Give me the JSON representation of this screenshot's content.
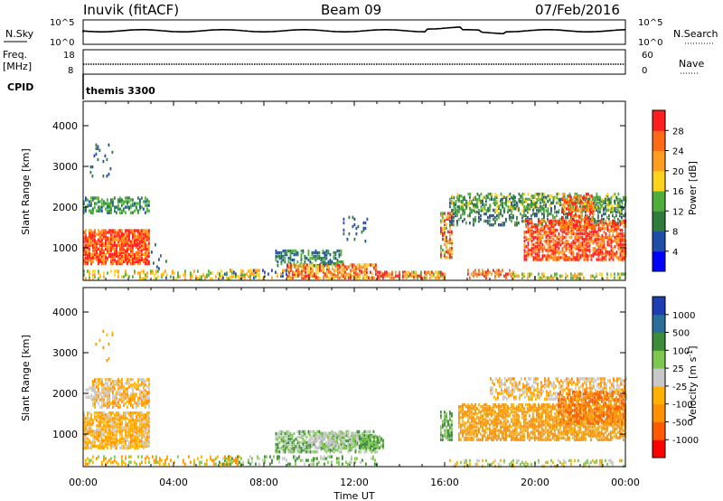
{
  "header": {
    "station": "Inuvik (fitACF)",
    "beam": "Beam 09",
    "date": "07/Feb/2016"
  },
  "params": {
    "nsky_label": "N.Sky",
    "nsky_top": "10^5",
    "nsky_bottom": "10^0",
    "nsearch_label": "N.Search",
    "nsearch_top": "10^5",
    "nsearch_bottom": "10^0",
    "freq_label_1": "Freq.",
    "freq_label_2": "[MHz]",
    "freq_top": "18",
    "freq_bottom": "8",
    "nave_label": "Nave",
    "nave_top": "60",
    "nave_bottom": "0",
    "cpid_label": "CPID",
    "cpid_value": "themis 3300"
  },
  "colors": {
    "power": [
      "#0000ff",
      "#1e4ea8",
      "#2e7b3c",
      "#4fae3a",
      "#ffd21e",
      "#ff9e1e",
      "#ff6a14",
      "#ff1e1e"
    ],
    "velocity": [
      "#ff0000",
      "#ff5a00",
      "#ff9000",
      "#ffb000",
      "#c8c8c8",
      "#7ec850",
      "#3c8c3c",
      "#2a6e9a",
      "#1e3cb4"
    ]
  },
  "chart_data": [
    {
      "type": "heatmap",
      "name": "power",
      "ylabel": "Slant Range [km]",
      "xlabel": "Time UT",
      "x_ticks": [
        "00:00",
        "04:00",
        "08:00",
        "12:00",
        "16:00",
        "20:00",
        "00:00"
      ],
      "x_range_hours": [
        0,
        24
      ],
      "y_ticks": [
        1000,
        2000,
        3000,
        4000
      ],
      "ylim": [
        200,
        4600
      ],
      "colorbar_label": "Power [dB]",
      "colorbar_ticks": [
        "4",
        "8",
        "12",
        "16",
        "20",
        "24",
        "28"
      ],
      "colorbar_range": [
        0,
        30
      ]
    },
    {
      "type": "heatmap",
      "name": "velocity",
      "ylabel": "Slant Range [km]",
      "xlabel": "Time UT",
      "x_ticks": [
        "00:00",
        "04:00",
        "08:00",
        "12:00",
        "16:00",
        "20:00",
        "00:00"
      ],
      "x_range_hours": [
        0,
        24
      ],
      "y_ticks": [
        1000,
        2000,
        3000,
        4000
      ],
      "ylim": [
        200,
        4600
      ],
      "colorbar_label": "Velocity [m s^-1]",
      "colorbar_ticks": [
        "1000",
        "500",
        "100",
        "25",
        "-25",
        "-100",
        "-500",
        "-1000"
      ]
    }
  ],
  "axis_title": "Time UT"
}
